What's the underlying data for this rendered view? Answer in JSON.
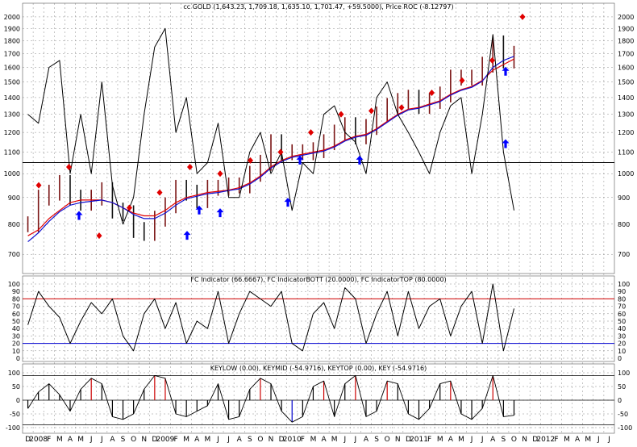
{
  "colors": {
    "background": "#ffffff",
    "grid": "#8c8c8c",
    "price_up": "#7a1414",
    "price_down": "#111111",
    "ma_red": "#e00000",
    "ma_blue": "#1010d0",
    "roc_line": "#000000",
    "sell_marker": "#e00000",
    "buy_arrow": "#0000ff",
    "fc_top_line": "#d00000",
    "fc_bottom_line": "#0000d0",
    "key_positive": "#cc0000",
    "key_negative": "#0000cc"
  },
  "chart_data": [
    {
      "panel": "price",
      "type": "line",
      "title": "cc GOLD (1,643.23, 1,709.18, 1,635.10, 1,701.47, +59.5000), Price ROC (-8.12797)",
      "y_ticks": [
        "2000",
        "1900",
        "1800",
        "1700",
        "1600",
        "1500",
        "1400",
        "1300",
        "1200",
        "1100",
        "1000",
        "900",
        "800",
        "700"
      ],
      "ylim": [
        650,
        2050
      ],
      "y_scale": "log",
      "horizontal_line": 1050,
      "x": [
        "2007-12",
        "2008-01",
        "2008-02",
        "2008-03",
        "2008-04",
        "2008-05",
        "2008-06",
        "2008-07",
        "2008-08",
        "2008-09",
        "2008-10",
        "2008-11",
        "2008-12",
        "2009-01",
        "2009-02",
        "2009-03",
        "2009-04",
        "2009-05",
        "2009-06",
        "2009-07",
        "2009-08",
        "2009-09",
        "2009-10",
        "2009-11",
        "2009-12",
        "2010-01",
        "2010-02",
        "2010-03",
        "2010-04",
        "2010-05",
        "2010-06",
        "2010-07",
        "2010-08",
        "2010-09",
        "2010-10",
        "2010-11",
        "2010-12",
        "2011-01",
        "2011-02",
        "2011-03",
        "2011-04",
        "2011-05",
        "2011-06",
        "2011-07",
        "2011-08",
        "2011-09",
        "2011-10"
      ],
      "series": [
        {
          "values": [
            800,
            900,
            920,
            960,
            900,
            880,
            900,
            930,
            850,
            840,
            780,
            770,
            820,
            870,
            940,
            920,
            890,
            940,
            940,
            950,
            950,
            1000,
            1050,
            1150,
            1100,
            1100,
            1100,
            1110,
            1150,
            1200,
            1240,
            1180,
            1230,
            1300,
            1350,
            1380,
            1400,
            1350,
            1380,
            1420,
            1530,
            1530,
            1530,
            1620,
            1780,
            1650,
            1700
          ]
        },
        {
          "values": [
            760,
            780,
            820,
            850,
            880,
            890,
            890,
            890,
            880,
            860,
            840,
            830,
            830,
            850,
            880,
            900,
            910,
            920,
            925,
            930,
            940,
            960,
            990,
            1030,
            1060,
            1080,
            1090,
            1100,
            1110,
            1130,
            1160,
            1180,
            1190,
            1220,
            1260,
            1300,
            1330,
            1340,
            1360,
            1380,
            1420,
            1450,
            1470,
            1510,
            1580,
            1620,
            1660
          ]
        },
        {
          "values": [
            740,
            770,
            810,
            845,
            870,
            880,
            885,
            890,
            880,
            860,
            835,
            820,
            820,
            840,
            870,
            895,
            905,
            915,
            920,
            928,
            935,
            955,
            985,
            1025,
            1055,
            1075,
            1085,
            1095,
            1105,
            1125,
            1155,
            1175,
            1185,
            1215,
            1255,
            1295,
            1325,
            1335,
            1355,
            1375,
            1415,
            1445,
            1465,
            1505,
            1600,
            1650,
            1680
          ]
        },
        {
          "values": [
            1300,
            1250,
            1600,
            1650,
            1000,
            1300,
            1000,
            1500,
            950,
            800,
            900,
            1300,
            1750,
            1900,
            1200,
            1400,
            1000,
            1050,
            1250,
            900,
            900,
            1100,
            1200,
            1000,
            1100,
            850,
            1050,
            1000,
            1300,
            1350,
            1200,
            1150,
            1000,
            1400,
            1500,
            1300,
            1200,
            1100,
            1000,
            1200,
            1350,
            1400,
            1000,
            1300,
            1850,
            1100,
            850
          ]
        }
      ],
      "sell_markers": [
        950,
        1030,
        760,
        860,
        920,
        1030,
        1000,
        1060,
        1100,
        1200,
        1300,
        1320,
        1340,
        1430,
        1510,
        1650,
        2000
      ],
      "buy_arrows": [
        830,
        760,
        850,
        840,
        880,
        1060,
        1060,
        1140,
        1570
      ]
    },
    {
      "panel": "fc_indicator",
      "type": "line",
      "title": "FC Indicator (66.6667), FC IndicatorBOTT (20.0000), FC IndicatorTOP (80.0000)",
      "y_ticks": [
        "100",
        "90",
        "80",
        "70",
        "60",
        "50",
        "40",
        "30",
        "20",
        "10",
        "0"
      ],
      "ylim": [
        0,
        100
      ],
      "lines": {
        "top": 80,
        "bottom": 20
      },
      "values": [
        45,
        90,
        70,
        55,
        20,
        50,
        75,
        60,
        80,
        30,
        10,
        60,
        80,
        40,
        75,
        20,
        50,
        40,
        90,
        20,
        60,
        90,
        80,
        70,
        90,
        20,
        10,
        60,
        75,
        40,
        95,
        80,
        20,
        60,
        90,
        30,
        90,
        40,
        70,
        80,
        30,
        70,
        90,
        20,
        100,
        10,
        67
      ]
    },
    {
      "panel": "key",
      "type": "bar",
      "title": "KEYLOW (0.00), KEYMID (-54.9716), KEYTOP (0.00), KEY (-54.9716)",
      "y_ticks": [
        "100",
        "50",
        "0",
        "-50",
        "-100"
      ],
      "ylim": [
        -100,
        100
      ],
      "values": [
        -30,
        30,
        60,
        20,
        -40,
        40,
        80,
        60,
        -60,
        -70,
        -50,
        40,
        90,
        80,
        -50,
        -60,
        -40,
        -20,
        60,
        -70,
        -60,
        40,
        80,
        60,
        -40,
        -80,
        -60,
        50,
        70,
        -60,
        60,
        90,
        -60,
        -40,
        70,
        60,
        -50,
        -70,
        -30,
        60,
        70,
        -50,
        -70,
        -30,
        90,
        -60,
        -55
      ]
    }
  ],
  "x_axis": {
    "months": [
      "D",
      "2008",
      "F",
      "M",
      "A",
      "M",
      "J",
      "J",
      "A",
      "S",
      "O",
      "N",
      "D",
      "2009",
      "F",
      "M",
      "A",
      "M",
      "J",
      "J",
      "A",
      "S",
      "O",
      "N",
      "D",
      "2010",
      "F",
      "M",
      "A",
      "M",
      "J",
      "J",
      "A",
      "S",
      "O",
      "N",
      "D",
      "2011",
      "F",
      "M",
      "A",
      "M",
      "J",
      "J",
      "A",
      "S",
      "O",
      "N",
      "D",
      "2012",
      "F",
      "M",
      "A",
      "M",
      "J",
      "J"
    ]
  }
}
